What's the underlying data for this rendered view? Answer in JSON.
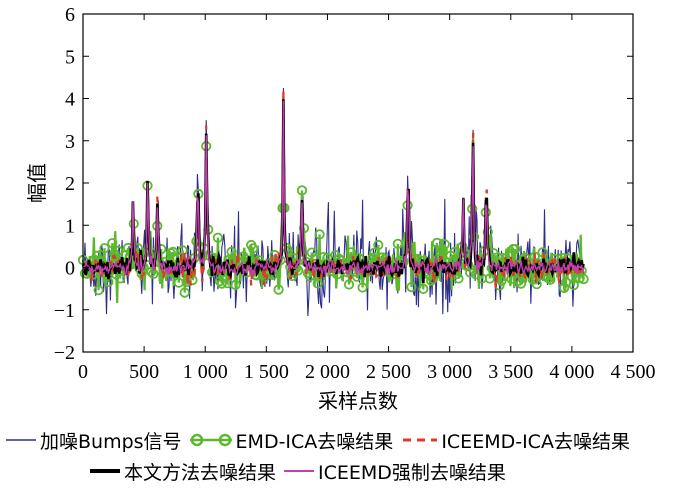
{
  "chart_data": {
    "type": "line",
    "title": "",
    "xlabel": "采样点数",
    "ylabel": "幅值",
    "xlim": [
      0,
      4500
    ],
    "ylim": [
      -2,
      6
    ],
    "xticks": [
      0,
      500,
      1000,
      1500,
      2000,
      2500,
      3000,
      3500,
      4000,
      4500
    ],
    "xtick_labels": [
      "0",
      "500",
      "1 000",
      "1 500",
      "2 000",
      "2 500",
      "3 000",
      "3 500",
      "4 000",
      "4 500"
    ],
    "yticks": [
      -2,
      -1,
      0,
      1,
      2,
      3,
      4,
      5,
      6
    ],
    "ytick_labels": [
      "−2",
      "−1",
      "0",
      "1",
      "2",
      "3",
      "4",
      "5",
      "6"
    ],
    "grid": false,
    "legend_position": "bottom",
    "x_range": [
      0,
      4096
    ],
    "peaks": [
      {
        "x": 410,
        "y": 2.1
      },
      {
        "x": 530,
        "y": 2.9
      },
      {
        "x": 610,
        "y": 2.1
      },
      {
        "x": 940,
        "y": 3.1
      },
      {
        "x": 1010,
        "y": 4.3
      },
      {
        "x": 1640,
        "y": 4.1
      },
      {
        "x": 1790,
        "y": 2.0
      },
      {
        "x": 2660,
        "y": 3.3
      },
      {
        "x": 3110,
        "y": 2.3
      },
      {
        "x": 3190,
        "y": 4.2
      },
      {
        "x": 3300,
        "y": 2.9
      }
    ],
    "series": [
      {
        "name": "加噪Bumps信号",
        "color": "#2e2e8f",
        "style": "solid-thin",
        "noise": 0.42
      },
      {
        "name": "EMD-ICA去噪结果",
        "color": "#5cb82e",
        "style": "circle-markers",
        "noise": 0.28
      },
      {
        "name": "ICEEMD-ICA去噪结果",
        "color": "#e0382a",
        "style": "dashed",
        "noise": 0.15
      },
      {
        "name": "本文方法去噪结果",
        "color": "#000000",
        "style": "solid-thick",
        "noise": 0.11
      },
      {
        "name": "ICEEMD强制去噪结果",
        "color": "#c23fb0",
        "style": "solid-thin",
        "noise": 0.08
      }
    ]
  }
}
